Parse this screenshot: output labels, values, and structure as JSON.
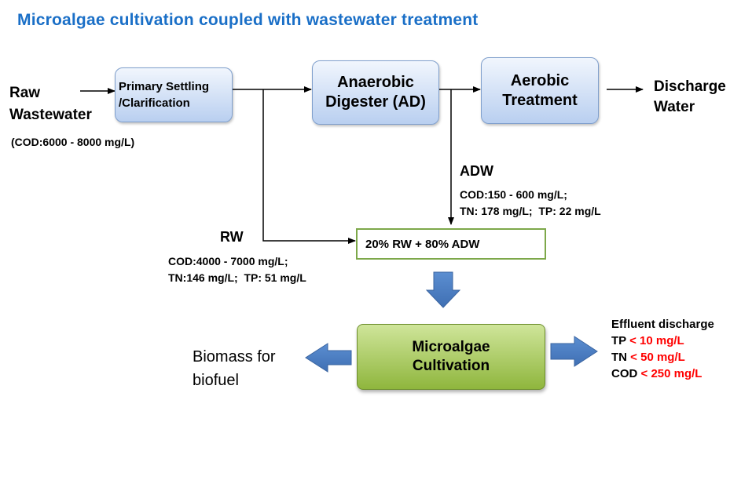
{
  "title": "Microalgae cultivation coupled with wastewater treatment",
  "raw_wastewater": {
    "line1": "Raw",
    "line2": "Wastewater",
    "cod": "(COD:6000 - 8000 mg/L)"
  },
  "boxes": {
    "primary": {
      "line1": "Primary Settling",
      "line2": "/Clarification"
    },
    "anaerobic": {
      "line1": "Anaerobic",
      "line2": "Digester (AD)"
    },
    "aerobic": {
      "line1": "Aerobic",
      "line2": "Treatment"
    },
    "mix": "20% RW + 80% ADW",
    "cultivation": {
      "line1": "Microalgae",
      "line2": "Cultivation"
    }
  },
  "discharge": {
    "line1": "Discharge",
    "line2": "Water"
  },
  "adw": {
    "label": "ADW",
    "line1": "COD:150 - 600 mg/L;",
    "line2": "TN: 178 mg/L;  TP: 22 mg/L"
  },
  "rw": {
    "label": "RW",
    "line1": "COD:4000 - 7000 mg/L;",
    "line2": "TN:146 mg/L;  TP: 51 mg/L"
  },
  "biomass": {
    "line1": "Biomass for",
    "line2": "biofuel"
  },
  "effluent": {
    "title": "Effluent discharge",
    "rows": [
      {
        "param": "TP",
        "limit": "< 10 mg/L"
      },
      {
        "param": "TN",
        "limit": "< 50 mg/L"
      },
      {
        "param": "COD",
        "limit": "< 250 mg/L"
      }
    ]
  },
  "colors": {
    "title": "#1a6fc7",
    "arrow_fill": "#4a7cc0",
    "limit": "#ff0000"
  }
}
